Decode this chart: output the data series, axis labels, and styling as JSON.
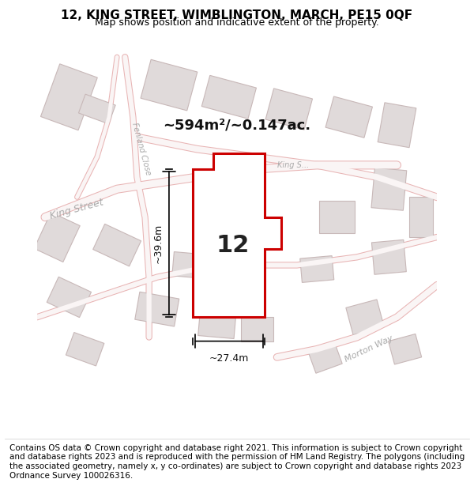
{
  "title_line1": "12, KING STREET, WIMBLINGTON, MARCH, PE15 0QF",
  "title_line2": "Map shows position and indicative extent of the property.",
  "footer_text": "Contains OS data © Crown copyright and database right 2021. This information is subject to Crown copyright and database rights 2023 and is reproduced with the permission of HM Land Registry. The polygons (including the associated geometry, namely x, y co-ordinates) are subject to Crown copyright and database rights 2023 Ordnance Survey 100026316.",
  "area_label": "~594m²/~0.147ac.",
  "plot_number": "12",
  "height_label": "~39.6m",
  "width_label": "~27.4m",
  "bg_color": "#f5f0f0",
  "map_bg": "#f7f2f2",
  "road_color": "#e8b4b4",
  "building_color": "#d8d0d0",
  "building_fill": "#e0d8d8",
  "plot_fill": "white",
  "plot_edge": "#cc0000",
  "street_label_color": "#aaaaaa",
  "title_fontsize": 11,
  "subtitle_fontsize": 9,
  "footer_fontsize": 7.5,
  "map_xlim": [
    0,
    1
  ],
  "map_ylim": [
    0,
    1
  ]
}
